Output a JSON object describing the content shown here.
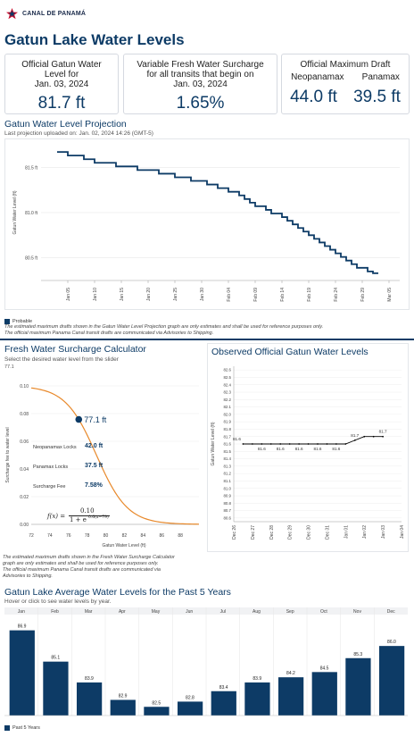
{
  "header": {
    "logo_text": "CANAL DE PANAMÁ",
    "page_title": "Gatun Lake Water Levels"
  },
  "cards": {
    "official": {
      "label_line1": "Official Gatun Water Level for",
      "label_line2": "Jan. 03, 2024",
      "value": "81.7 ft"
    },
    "surcharge": {
      "label_line1": "Variable Fresh Water Surcharge for all transits that begin on",
      "label_line2": "Jan. 03, 2024",
      "value": "1.65%"
    },
    "draft": {
      "label": "Official Maximum Draft",
      "neo_label": "Neopanamax",
      "neo_value": "44.0 ft",
      "pana_label": "Panamax",
      "pana_value": "39.5 ft"
    }
  },
  "projection": {
    "title": "Gatun Water Level Projection",
    "subtitle": "Last projection uploaded on: Jan. 02, 2024 14:26 (GMT-5)",
    "legend": "Probable",
    "note_line1": "The estimated maximum drafts shown in the Gatun Water Level Projection graph are only estimates and shall be used for reference purposes only.",
    "note_line2": "The official maximum Panama Canal transit drafts are communicated via Advisories to Shipping."
  },
  "calculator": {
    "title": "Fresh Water Surcharge Calculator",
    "instruction": "Select the desired water level from the slider",
    "slider_value": "77.1",
    "point_label": "77.1 ft",
    "neo_label": "Neopanamax Locks",
    "neo_value": "42.0 ft",
    "pana_label": "Panamax Locks",
    "pana_value": "37.5 ft",
    "fee_label": "Surcharge Fee",
    "fee_value": "7.58%",
    "formula_lhs": "f(x) =",
    "formula_num": "0.10",
    "formula_den": "1 + e",
    "formula_exp": "0.6(x−79)",
    "note_line1": "The estimated maximum drafts shown in the Fresh Water Surcharge Calculator",
    "note_line2": "graph are only estimates and shall be used for reference purposes only.",
    "note_line3": "The official maximum Panama Canal transit drafts are communicated via",
    "note_line4": "Advisories to Shipping."
  },
  "observed": {
    "title": "Observed Official Gatun Water Levels"
  },
  "averages": {
    "title": "Gatun Lake Average Water Levels for the Past 5 Years",
    "subtitle": "Hover or click to see water levels by year.",
    "legend": "Past 5 Years"
  },
  "colors": {
    "navy": "#0d3b66",
    "orange": "#e8892b"
  },
  "chart_data": [
    {
      "type": "line",
      "name": "projection",
      "ylabel": "Gatun Water Level (ft)",
      "ylim": [
        80.25,
        81.75
      ],
      "yticks": [
        80.5,
        81.0,
        81.5
      ],
      "ytick_labels": [
        "80.5 ft",
        "81.0 ft",
        "81.5 ft"
      ],
      "xticks": [
        "Jan 05",
        "Jan 10",
        "Jan 15",
        "Jan 20",
        "Jan 25",
        "Jan 30",
        "Feb 04",
        "Feb 09",
        "Feb 14",
        "Feb 19",
        "Feb 24",
        "Feb 29",
        "Mar 05"
      ],
      "xtick_days": [
        2,
        7,
        12,
        17,
        22,
        27,
        32,
        37,
        42,
        47,
        52,
        57,
        62
      ],
      "xlim_days": [
        -3,
        64
      ],
      "series": [
        {
          "label": "Probable",
          "days": [
            0,
            1,
            2,
            3,
            4,
            5,
            6,
            7,
            8,
            9,
            10,
            11,
            12,
            13,
            14,
            15,
            16,
            17,
            18,
            19,
            20,
            21,
            22,
            23,
            24,
            25,
            26,
            27,
            28,
            29,
            30,
            31,
            32,
            33,
            34,
            35,
            36,
            37,
            38,
            39,
            40,
            41,
            42,
            43,
            44,
            45,
            46,
            47,
            48,
            49,
            50,
            51,
            52,
            53,
            54,
            55,
            56,
            57,
            58,
            59,
            60
          ],
          "values": [
            81.67,
            81.67,
            81.63,
            81.63,
            81.63,
            81.59,
            81.59,
            81.55,
            81.55,
            81.55,
            81.55,
            81.51,
            81.51,
            81.51,
            81.51,
            81.47,
            81.47,
            81.47,
            81.47,
            81.43,
            81.43,
            81.43,
            81.39,
            81.39,
            81.39,
            81.35,
            81.35,
            81.35,
            81.31,
            81.31,
            81.27,
            81.27,
            81.23,
            81.23,
            81.19,
            81.15,
            81.11,
            81.07,
            81.07,
            81.03,
            80.99,
            80.99,
            80.95,
            80.91,
            80.87,
            80.83,
            80.79,
            80.75,
            80.71,
            80.67,
            80.63,
            80.59,
            80.55,
            80.51,
            80.47,
            80.43,
            80.39,
            80.39,
            80.35,
            80.33,
            80.33
          ]
        }
      ]
    },
    {
      "type": "line",
      "name": "surcharge",
      "xlabel": "Gatun Water Level (ft)",
      "ylabel": "Surcharge fee to water level",
      "xlim": [
        72,
        90
      ],
      "ylim": [
        0,
        0.1
      ],
      "xticks": [
        72,
        74,
        76,
        78,
        80,
        82,
        84,
        86,
        88
      ],
      "yticks": [
        0.0,
        0.02,
        0.04,
        0.06,
        0.08,
        0.1
      ],
      "ytick_labels": [
        "0.00",
        "0.02",
        "0.04",
        "0.06",
        "0.08",
        "0.10"
      ],
      "selected": {
        "x": 77.1,
        "y": 0.0758
      }
    },
    {
      "type": "line",
      "name": "observed",
      "ylabel": "Gatun Water Level (ft)",
      "ylim": [
        80.55,
        82.65
      ],
      "yticks": [
        80.6,
        80.7,
        80.8,
        80.9,
        81.0,
        81.1,
        81.2,
        81.3,
        81.4,
        81.5,
        81.6,
        81.7,
        81.8,
        81.9,
        82.0,
        82.1,
        82.2,
        82.3,
        82.4,
        82.5,
        82.6
      ],
      "ytick_labels": [
        "80.6",
        "80.7",
        "80.8",
        "80.9",
        "81.0",
        "81.1",
        "81.2",
        "81.3",
        "81.4",
        "81.5",
        "81.6",
        "81.7",
        "81.8",
        "81.9",
        "82.0",
        "82.1",
        "82.2",
        "82.3",
        "82.4",
        "82.5",
        "82.6"
      ],
      "xticks": [
        "Dec 26",
        "Dec 27",
        "Dec 28",
        "Dec 29",
        "Dec 30",
        "Dec 31",
        "Jan 01",
        "Jan 02",
        "Jan 03",
        "Jan 04"
      ],
      "x_index": [
        0.5,
        1,
        1.5,
        2,
        2.5,
        3,
        3.5,
        4,
        4.5,
        5,
        5.5,
        6,
        6.5,
        7,
        7.5,
        8
      ],
      "values": [
        81.6,
        81.6,
        81.6,
        81.6,
        81.6,
        81.6,
        81.6,
        81.6,
        81.6,
        81.6,
        81.6,
        81.6,
        81.65,
        81.7,
        81.7,
        81.7
      ],
      "data_labels": [
        {
          "i": 2,
          "text": "81.6"
        },
        {
          "i": 4,
          "text": "81.6"
        },
        {
          "i": 6,
          "text": "81.6"
        },
        {
          "i": 8,
          "text": "81.6"
        },
        {
          "i": 10,
          "text": "81.6"
        },
        {
          "i": 0,
          "text": "81.6"
        },
        {
          "i": 12,
          "text": "81.7"
        },
        {
          "i": 15,
          "text": "81.7"
        }
      ]
    },
    {
      "type": "bar",
      "name": "averages",
      "categories": [
        "Jan",
        "Feb",
        "Mar",
        "Apr",
        "May",
        "Jun",
        "Jul",
        "Aug",
        "Sep",
        "Oct",
        "Nov",
        "Dec"
      ],
      "values": [
        86.9,
        85.1,
        83.9,
        82.9,
        82.5,
        82.8,
        83.4,
        83.9,
        84.2,
        84.5,
        85.3,
        86.0
      ],
      "ylim": [
        82.0,
        87.6
      ],
      "series_label": "Past 5 Years"
    }
  ]
}
